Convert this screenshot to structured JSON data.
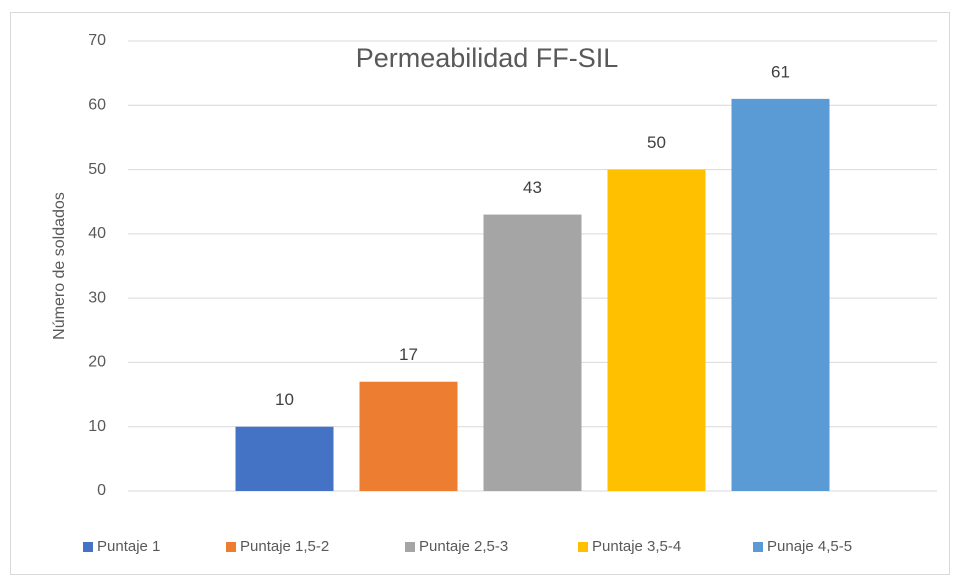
{
  "chart_data": {
    "type": "bar",
    "title": "Permeabilidad FF-SIL",
    "y_label": "Número de soldados",
    "categories": [
      null
    ],
    "series": [
      {
        "name": "Puntaje 1",
        "color": "#4472c4",
        "values": [
          10
        ]
      },
      {
        "name": "Puntaje 1,5-2",
        "color": "#ed7d31",
        "values": [
          17
        ]
      },
      {
        "name": "Puntaje 2,5-3",
        "color": "#a5a5a5",
        "values": [
          43
        ]
      },
      {
        "name": "Puntaje 3,5-4",
        "color": "#ffc000",
        "values": [
          50
        ]
      },
      {
        "name": "Punaje 4,5-5",
        "color": "#5b9bd5",
        "values": [
          61
        ]
      }
    ],
    "ylim": [
      0,
      70
    ],
    "yticks": [
      0,
      10,
      20,
      30,
      40,
      50,
      60,
      70
    ],
    "grid": true,
    "legend": "bottom"
  }
}
